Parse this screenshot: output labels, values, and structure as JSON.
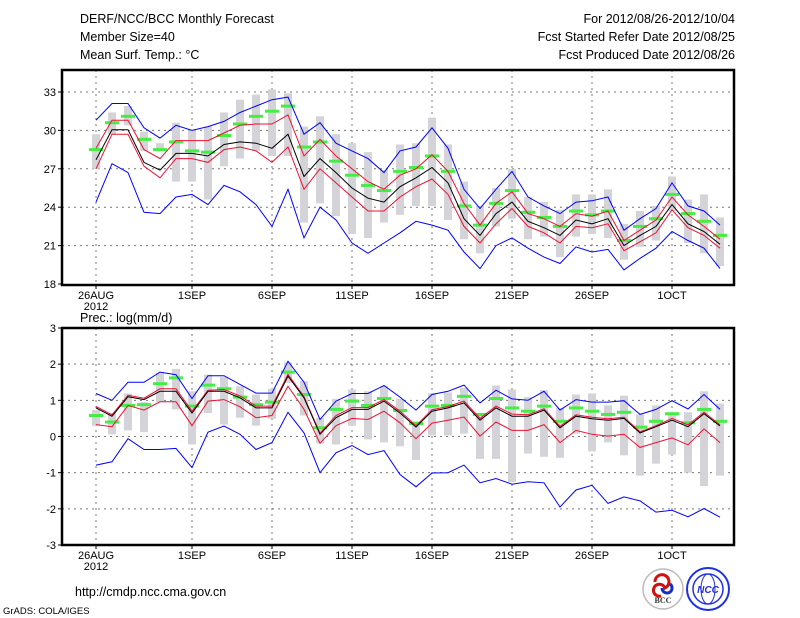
{
  "header": {
    "title": "DERF/NCC/BCC Monthly Forecast",
    "member_size": "Member Size=40",
    "temp_label": "Mean Surf. Temp.: °C",
    "period": "For 2012/08/26-2012/10/04",
    "start_date": "Fcst Started Refer Date 2012/08/25",
    "produced_date": "Fcst Produced Date 2012/08/26"
  },
  "footer": {
    "url": "http://cmdp.ncc.cma.gov.cn",
    "credit": "GrADS: COLA/IGES",
    "logo_bcc": "BCC",
    "logo_ncc": "NCC"
  },
  "colors": {
    "max_min": "#0000ff",
    "spread": "#ee1133",
    "mean": "#000000",
    "observed": "#44ee44",
    "range": "#d3d3d8"
  },
  "chart_data": [
    {
      "type": "line",
      "title": "Mean Surf. Temp.: °C",
      "ylim": [
        18,
        34.7
      ],
      "yticks": [
        "18",
        "21",
        "24",
        "27",
        "30",
        "33"
      ],
      "xtick_labels": [
        {
          "index": 0,
          "label": "26AUG",
          "sub": "2012"
        },
        {
          "index": 6,
          "label": "1SEP"
        },
        {
          "index": 11,
          "label": "6SEP"
        },
        {
          "index": 16,
          "label": "11SEP"
        },
        {
          "index": 21,
          "label": "16SEP"
        },
        {
          "index": 26,
          "label": "21SEP"
        },
        {
          "index": 31,
          "label": "26SEP"
        },
        {
          "index": 36,
          "label": "1OCT"
        }
      ],
      "x_start": "2012-08-26",
      "n_days": 40,
      "grid": true,
      "series": [
        {
          "name": "range_hi",
          "values": [
            29.7,
            31.4,
            31.9,
            29.9,
            29.0,
            30.6,
            30.0,
            30.3,
            31.4,
            32.4,
            32.8,
            33.2,
            32.9,
            30.3,
            31.1,
            29.7,
            29.0,
            28.3,
            26.9,
            28.9,
            29.0,
            31.0,
            28.9,
            26.0,
            24.1,
            25.5,
            27.0,
            24.8,
            24.4,
            23.8,
            25.0,
            25.0,
            25.4,
            22.7,
            23.7,
            24.1,
            26.4,
            24.6,
            25.0,
            23.2
          ]
        },
        {
          "name": "range_lo",
          "values": [
            27.0,
            29.7,
            30.4,
            28.4,
            28.4,
            26.0,
            26.0,
            24.6,
            27.2,
            27.8,
            28.4,
            28.0,
            28.0,
            22.8,
            24.3,
            23.3,
            21.9,
            21.6,
            22.8,
            23.4,
            24.1,
            24.1,
            23.0,
            21.5,
            20.4,
            22.5,
            23.1,
            21.5,
            21.7,
            20.1,
            21.7,
            21.9,
            21.6,
            19.9,
            20.9,
            21.4,
            23.7,
            21.2,
            20.4,
            19.4
          ]
        },
        {
          "name": "max",
          "values": [
            30.8,
            32.1,
            32.1,
            30.2,
            29.4,
            30.4,
            30.0,
            30.3,
            30.7,
            31.4,
            31.9,
            32.4,
            32.6,
            29.7,
            30.6,
            29.0,
            28.4,
            27.8,
            26.7,
            28.4,
            28.7,
            30.2,
            28.6,
            25.4,
            23.9,
            25.4,
            26.8,
            24.8,
            24.1,
            23.5,
            24.4,
            24.5,
            24.8,
            22.2,
            23.1,
            23.9,
            25.9,
            24.1,
            23.7,
            22.6
          ]
        },
        {
          "name": "min",
          "values": [
            24.4,
            27.4,
            26.7,
            23.6,
            23.5,
            24.8,
            25.0,
            24.2,
            25.7,
            25.2,
            24.2,
            22.5,
            25.4,
            21.6,
            24.0,
            23.0,
            21.2,
            20.4,
            21.2,
            22.0,
            22.9,
            22.6,
            22.2,
            20.5,
            19.2,
            21.0,
            21.6,
            20.8,
            20.1,
            19.6,
            20.9,
            20.5,
            20.7,
            19.1,
            20.0,
            20.8,
            22.1,
            21.4,
            20.8,
            19.2
          ]
        },
        {
          "name": "upper",
          "values": [
            28.6,
            30.8,
            30.8,
            28.5,
            27.8,
            29.2,
            29.2,
            29.2,
            29.8,
            30.4,
            30.5,
            30.5,
            31.2,
            28.0,
            29.3,
            28.0,
            27.0,
            26.0,
            25.4,
            26.5,
            27.0,
            28.1,
            26.8,
            24.3,
            22.6,
            24.3,
            25.2,
            23.5,
            23.1,
            22.5,
            23.5,
            23.3,
            23.7,
            21.4,
            22.2,
            23.0,
            24.8,
            23.4,
            22.5,
            21.5
          ]
        },
        {
          "name": "lower",
          "values": [
            27.0,
            29.7,
            29.7,
            27.2,
            26.3,
            27.8,
            27.8,
            27.5,
            28.5,
            28.7,
            28.4,
            27.5,
            28.7,
            25.4,
            27.0,
            25.9,
            24.8,
            23.7,
            23.7,
            24.8,
            25.6,
            26.2,
            25.0,
            22.5,
            21.2,
            22.7,
            23.9,
            22.5,
            22.0,
            21.2,
            22.5,
            22.4,
            22.7,
            20.6,
            21.3,
            22.0,
            23.8,
            22.4,
            21.8,
            20.8
          ]
        },
        {
          "name": "mean",
          "values": [
            27.7,
            30.05,
            30.05,
            27.5,
            26.9,
            28.2,
            28.2,
            28.0,
            28.9,
            29.1,
            29.0,
            28.6,
            29.7,
            26.4,
            27.8,
            26.7,
            25.5,
            24.7,
            24.4,
            25.6,
            26.3,
            27.1,
            25.9,
            23.1,
            21.8,
            23.5,
            24.4,
            22.9,
            22.4,
            21.8,
            23.0,
            22.7,
            23.1,
            21.0,
            21.8,
            22.5,
            24.2,
            22.7,
            22.1,
            21.1
          ]
        },
        {
          "name": "observed",
          "values": [
            28.5,
            30.6,
            31.1,
            29.3,
            28.5,
            29.1,
            28.4,
            28.3,
            29.6,
            30.5,
            31.1,
            31.5,
            31.9,
            28.7,
            29.1,
            27.6,
            26.5,
            25.7,
            25.3,
            26.8,
            27.1,
            28.0,
            26.8,
            24.1,
            22.6,
            24.3,
            25.3,
            23.6,
            23.2,
            22.5,
            23.7,
            23.4,
            23.7,
            21.4,
            22.5,
            23.1,
            25.0,
            23.5,
            22.9,
            21.8
          ]
        }
      ]
    },
    {
      "type": "line",
      "title": "Prec.: log(mm/d)",
      "ylim": [
        -3,
        3
      ],
      "yticks": [
        "-3",
        "-2",
        "-1",
        "0",
        "1",
        "2",
        "3"
      ],
      "xtick_labels": [
        {
          "index": 0,
          "label": "26AUG",
          "sub": "2012"
        },
        {
          "index": 6,
          "label": "1SEP"
        },
        {
          "index": 11,
          "label": "6SEP"
        },
        {
          "index": 16,
          "label": "11SEP"
        },
        {
          "index": 21,
          "label": "16SEP"
        },
        {
          "index": 26,
          "label": "21SEP"
        },
        {
          "index": 31,
          "label": "26SEP"
        },
        {
          "index": 36,
          "label": "1OCT"
        }
      ],
      "x_start": "2012-08-26",
      "n_days": 40,
      "grid": true,
      "series": [
        {
          "name": "range_hi",
          "values": [
            0.73,
            0.65,
            1.19,
            0.95,
            1.76,
            1.87,
            1.25,
            1.71,
            1.65,
            1.39,
            1.16,
            1.32,
            2.05,
            1.53,
            0.52,
            1.04,
            1.3,
            1.25,
            1.39,
            1.04,
            0.42,
            1.2,
            1.22,
            1.34,
            0.65,
            1.41,
            1.3,
            1.09,
            1.28,
            0.79,
            1.16,
            1.19,
            0.86,
            1.13,
            0.61,
            0.86,
            0.67,
            0.67,
            1.25,
            0.91
          ]
        },
        {
          "name": "range_lo",
          "values": [
            0.3,
            0.06,
            0.17,
            0.12,
            0.95,
            0.75,
            -0.22,
            0.65,
            0.33,
            0.52,
            0.3,
            0.49,
            1.48,
            0.58,
            -0.19,
            -0.22,
            0.3,
            -0.08,
            -0.16,
            -0.27,
            -0.65,
            0.03,
            0.03,
            0.08,
            -0.62,
            -0.62,
            -1.26,
            -0.47,
            -0.56,
            -0.59,
            0.08,
            -0.41,
            -0.16,
            -0.52,
            -1.08,
            -0.75,
            -0.5,
            -1.0,
            -1.37,
            -1.08
          ]
        },
        {
          "name": "max",
          "values": [
            1.19,
            1.0,
            1.5,
            1.5,
            1.78,
            1.71,
            1.05,
            1.68,
            1.68,
            1.44,
            1.2,
            1.2,
            2.08,
            1.5,
            0.47,
            0.98,
            1.19,
            1.19,
            1.41,
            1.09,
            0.73,
            1.16,
            1.25,
            1.42,
            0.93,
            1.28,
            1.04,
            1.0,
            1.25,
            0.73,
            1.02,
            0.95,
            0.95,
            0.99,
            0.61,
            0.75,
            0.99,
            0.76,
            1.16,
            0.75
          ]
        },
        {
          "name": "min",
          "values": [
            -0.79,
            -0.7,
            -0.06,
            -0.36,
            -0.36,
            -0.33,
            -0.86,
            0.12,
            0.29,
            0.06,
            -0.36,
            -0.17,
            0.67,
            0.1,
            -1.0,
            -0.45,
            -0.25,
            -0.5,
            -0.39,
            -1.05,
            -1.39,
            -1.01,
            -1.0,
            -0.79,
            -1.28,
            -1.16,
            -1.32,
            -1.25,
            -1.28,
            -1.95,
            -1.48,
            -1.35,
            -1.85,
            -1.67,
            -1.78,
            -2.09,
            -2.04,
            -2.22,
            -1.99,
            -2.23
          ]
        },
        {
          "name": "upper",
          "values": [
            0.83,
            0.6,
            1.14,
            1.06,
            1.32,
            1.32,
            0.7,
            1.28,
            1.3,
            1.12,
            0.84,
            0.84,
            1.72,
            1.1,
            0.09,
            0.58,
            0.8,
            0.8,
            1.02,
            0.7,
            0.3,
            0.74,
            0.83,
            0.98,
            0.5,
            0.84,
            0.62,
            0.6,
            0.77,
            0.28,
            0.6,
            0.53,
            0.49,
            0.53,
            0.13,
            0.3,
            0.5,
            0.32,
            0.67,
            0.32
          ]
        },
        {
          "name": "lower",
          "values": [
            0.33,
            0.27,
            0.86,
            0.73,
            0.96,
            0.96,
            0.3,
            0.98,
            1.02,
            0.82,
            0.52,
            0.58,
            1.39,
            0.75,
            -0.19,
            0.3,
            0.5,
            0.47,
            0.7,
            0.38,
            -0.06,
            0.37,
            0.45,
            0.54,
            0.01,
            0.4,
            0.17,
            0.17,
            0.33,
            -0.17,
            0.17,
            0.06,
            0.01,
            0.06,
            -0.3,
            -0.17,
            -0.04,
            -0.23,
            0.21,
            -0.17
          ]
        },
        {
          "name": "mean",
          "values": [
            0.79,
            0.56,
            1.1,
            1.02,
            1.25,
            1.25,
            0.65,
            1.25,
            1.25,
            1.07,
            0.79,
            0.79,
            1.67,
            1.07,
            0.06,
            0.52,
            0.75,
            0.75,
            0.98,
            0.65,
            0.26,
            0.7,
            0.79,
            0.93,
            0.45,
            0.79,
            0.56,
            0.56,
            0.73,
            0.24,
            0.56,
            0.49,
            0.45,
            0.5,
            0.1,
            0.27,
            0.45,
            0.27,
            0.63,
            0.29
          ]
        },
        {
          "name": "observed",
          "values": [
            0.58,
            0.4,
            0.86,
            0.88,
            1.46,
            1.62,
            0.84,
            1.42,
            1.32,
            1.09,
            0.88,
            0.95,
            1.78,
            1.16,
            0.24,
            0.75,
            0.98,
            0.86,
            1.05,
            0.72,
            0.36,
            0.84,
            0.86,
            1.11,
            0.61,
            1.05,
            0.79,
            0.7,
            0.84,
            0.42,
            0.79,
            0.7,
            0.61,
            0.67,
            0.26,
            0.42,
            0.63,
            0.38,
            0.75,
            0.42
          ]
        }
      ]
    }
  ]
}
